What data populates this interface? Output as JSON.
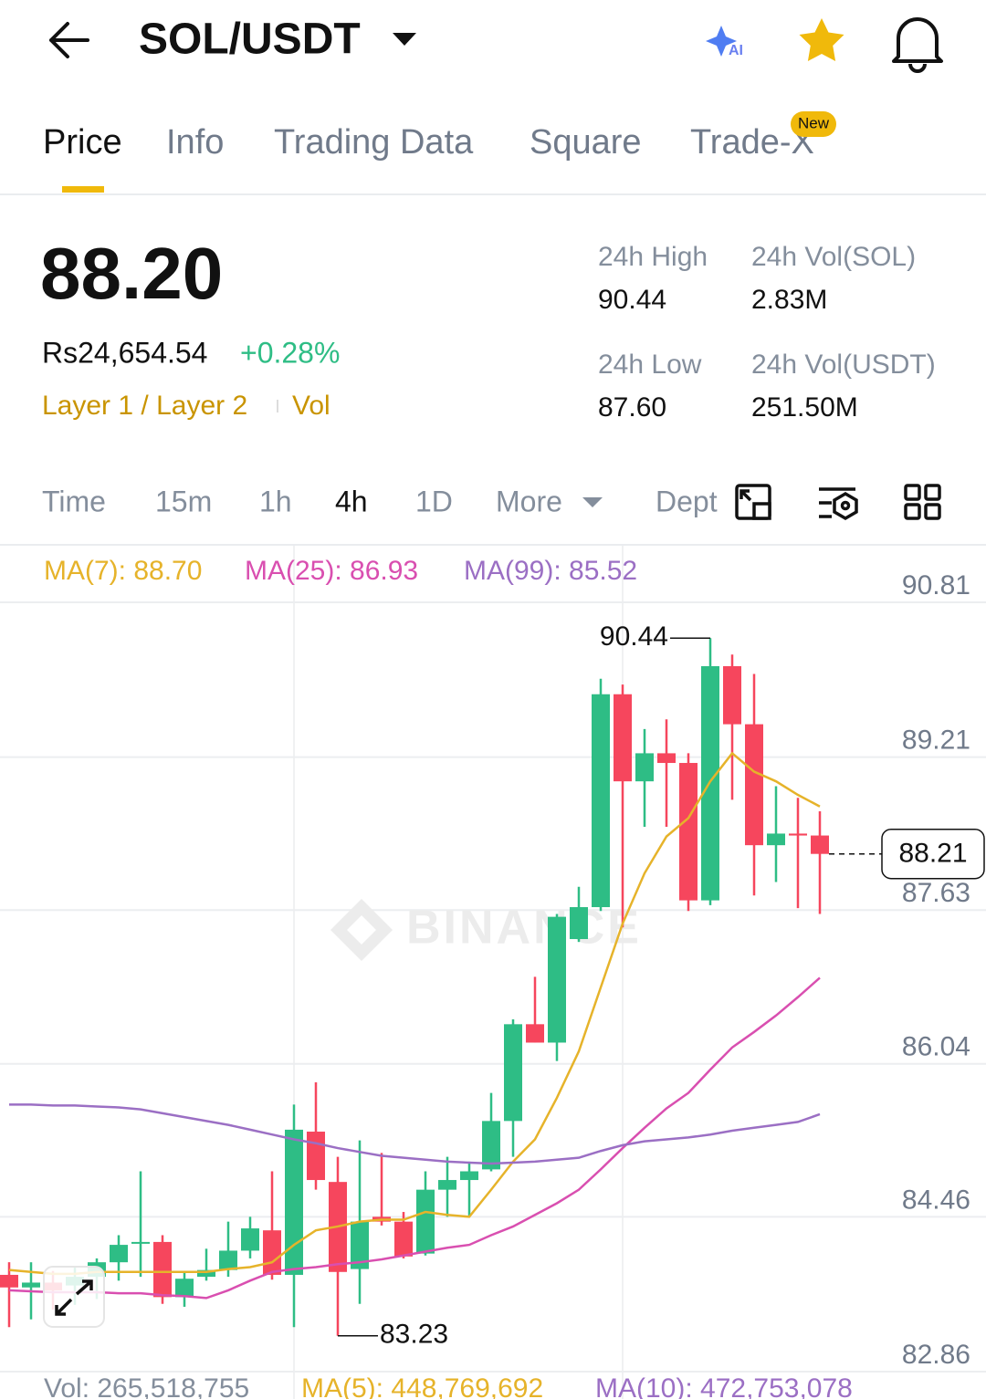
{
  "header": {
    "title": "SOL/USDT"
  },
  "tabs": {
    "items": [
      "Price",
      "Info",
      "Trading Data",
      "Square",
      "Trade-X"
    ],
    "badge": "New"
  },
  "summary": {
    "price": "88.20",
    "fiat": "Rs24,654.54",
    "change": "+0.28%",
    "tags": [
      "Layer 1 / Layer 2",
      "Vol"
    ],
    "stats": [
      {
        "label": "24h High",
        "value": "90.44"
      },
      {
        "label": "24h Vol(SOL)",
        "value": "2.83M"
      },
      {
        "label": "24h Low",
        "value": "87.60"
      },
      {
        "label": "24h Vol(USDT)",
        "value": "251.50M"
      }
    ]
  },
  "intervals": {
    "items": [
      "Time",
      "15m",
      "1h",
      "4h",
      "1D",
      "More",
      "Dept"
    ]
  },
  "chart": {
    "type": "candlestick",
    "watermark": "BINANCE",
    "ylim": [
      82.86,
      90.81
    ],
    "yticks": [
      90.81,
      89.21,
      87.63,
      86.04,
      84.46,
      82.86
    ],
    "up_color": "#2ebd85",
    "down_color": "#f6465d",
    "open": [
      83.86,
      83.73,
      83.78,
      83.75,
      83.84,
      83.99,
      84.19,
      84.2,
      83.63,
      83.84,
      83.91,
      84.11,
      84.32,
      83.86,
      85.34,
      84.82,
      83.92,
      84.46,
      84.41,
      84.08,
      84.74,
      84.84,
      84.95,
      85.45,
      86.45,
      86.26,
      87.33,
      87.66,
      89.86,
      88.96,
      89.25,
      89.15,
      87.73,
      90.15,
      89.55,
      88.3,
      88.42,
      88.4
    ],
    "high": [
      83.99,
      83.99,
      83.9,
      83.95,
      84.03,
      84.27,
      84.93,
      84.27,
      83.89,
      84.13,
      84.41,
      84.46,
      84.93,
      85.62,
      85.85,
      85.08,
      85.25,
      85.12,
      84.51,
      84.93,
      85.08,
      85.03,
      85.74,
      86.5,
      86.94,
      87.59,
      87.87,
      90.02,
      89.96,
      89.5,
      89.6,
      89.25,
      90.44,
      90.27,
      90.07,
      88.91,
      88.79,
      88.65
    ],
    "low": [
      83.32,
      83.4,
      83.5,
      83.55,
      83.61,
      83.8,
      83.84,
      83.56,
      83.53,
      83.8,
      83.84,
      84.03,
      83.81,
      83.32,
      84.74,
      83.23,
      83.56,
      84.37,
      84.03,
      84.06,
      84.46,
      84.46,
      84.93,
      85.08,
      86.26,
      86.07,
      87.3,
      87.62,
      87.45,
      88.49,
      88.49,
      87.62,
      87.68,
      88.77,
      87.78,
      87.92,
      87.65,
      87.59
    ],
    "close": [
      83.73,
      83.78,
      83.7,
      83.84,
      83.99,
      84.17,
      84.2,
      83.63,
      83.82,
      83.91,
      84.11,
      84.34,
      83.86,
      85.36,
      84.84,
      83.89,
      84.41,
      84.41,
      84.05,
      84.74,
      84.84,
      84.93,
      85.45,
      86.45,
      86.26,
      87.56,
      87.66,
      89.86,
      88.96,
      89.25,
      89.15,
      87.73,
      90.15,
      89.55,
      88.3,
      88.42,
      88.4,
      88.21
    ],
    "ma_lines": [
      {
        "name": "MA(7): 88.70",
        "color": "#e6b32a",
        "values": [
          83.91,
          83.89,
          83.87,
          83.87,
          83.89,
          83.89,
          83.89,
          83.89,
          83.89,
          83.89,
          83.92,
          83.94,
          83.99,
          84.17,
          84.32,
          84.36,
          84.41,
          84.43,
          84.43,
          84.51,
          84.48,
          84.46,
          84.74,
          85.03,
          85.26,
          85.69,
          86.17,
          86.83,
          87.49,
          88.01,
          88.39,
          88.58,
          88.96,
          89.25,
          89.06,
          88.96,
          88.82,
          88.7
        ]
      },
      {
        "name": "MA(25): 86.93",
        "color": "#d94fb0",
        "values": [
          83.7,
          83.69,
          83.68,
          83.68,
          83.68,
          83.67,
          83.67,
          83.65,
          83.64,
          83.62,
          83.7,
          83.8,
          83.89,
          83.92,
          83.94,
          83.97,
          83.99,
          84.02,
          84.06,
          84.1,
          84.14,
          84.17,
          84.27,
          84.36,
          84.48,
          84.6,
          84.74,
          84.95,
          85.17,
          85.38,
          85.58,
          85.74,
          85.98,
          86.21,
          86.37,
          86.54,
          86.73,
          86.93
        ]
      },
      {
        "name": "MA(99): 85.52",
        "color": "#9b6fc4",
        "values": [
          85.62,
          85.62,
          85.61,
          85.61,
          85.6,
          85.59,
          85.57,
          85.53,
          85.49,
          85.45,
          85.41,
          85.36,
          85.31,
          85.26,
          85.22,
          85.17,
          85.13,
          85.09,
          85.07,
          85.05,
          85.03,
          85.02,
          85.01,
          85.02,
          85.03,
          85.05,
          85.07,
          85.14,
          85.2,
          85.24,
          85.26,
          85.28,
          85.31,
          85.35,
          85.38,
          85.41,
          85.44,
          85.52
        ]
      }
    ],
    "volume_legend": [
      {
        "text": "Vol: 265,518,755",
        "color": "#848e9c"
      },
      {
        "text": "MA(5): 448,769,692",
        "color": "#e6b32a"
      },
      {
        "text": "MA(10): 472,753,078",
        "color": "#9b6fc4"
      }
    ]
  }
}
